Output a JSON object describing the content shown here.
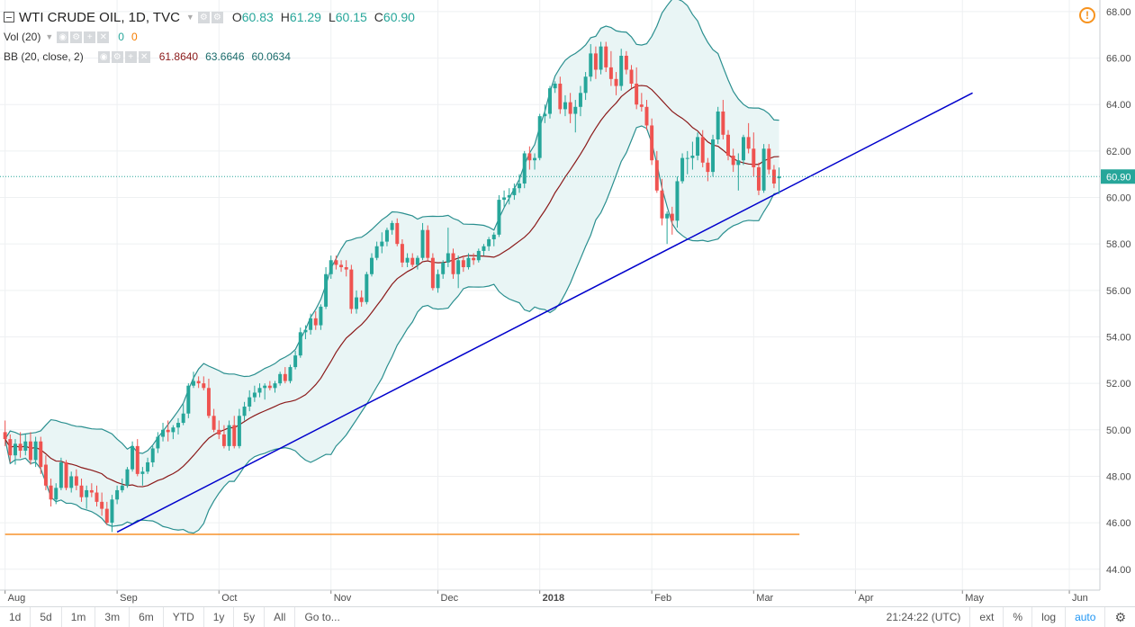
{
  "legend": {
    "title": "WTI CRUDE OIL, 1D, TVC",
    "open_label": "O",
    "open": "60.83",
    "high_label": "H",
    "high": "61.29",
    "low_label": "L",
    "low": "60.15",
    "close_label": "C",
    "close": "60.90",
    "vol_label": "Vol (20)",
    "vol_v1": "0",
    "vol_v2": "0",
    "bb_label": "BB (20, close, 2)",
    "bb_mid": "61.8640",
    "bb_upper": "63.6646",
    "bb_lower": "60.0634"
  },
  "alert_symbol": "!",
  "timeframes": [
    "1d",
    "5d",
    "1m",
    "3m",
    "6m",
    "YTD",
    "1y",
    "5y",
    "All",
    "Go to..."
  ],
  "bottom_right": {
    "time": "21:24:22 (UTC)",
    "ext": "ext",
    "pct": "%",
    "log": "log",
    "auto": "auto",
    "gear": "⚙"
  },
  "colors": {
    "up": "#26a69a",
    "down": "#ef5350",
    "band_fill": "#e9f5f5",
    "band_line": "#2a8f8f",
    "mid_line": "#8b1a1a",
    "trend_line": "#0000cc",
    "support_line": "#f57c00",
    "price_line": "#26a69a",
    "price_label_bg": "#26a69a"
  },
  "chart_data": {
    "type": "candlestick",
    "symbol": "WTI CRUDE OIL",
    "interval": "1D",
    "source": "TVC",
    "y_ticks": [
      44,
      46,
      48,
      50,
      52,
      54,
      56,
      58,
      60,
      62,
      64,
      66,
      68
    ],
    "y_tick_labels": [
      "44.00",
      "46.00",
      "48.00",
      "50.00",
      "52.00",
      "54.00",
      "56.00",
      "58.00",
      "60.00",
      "62.00",
      "64.00",
      "66.00",
      "68.00"
    ],
    "ylim": [
      43.1,
      68.5
    ],
    "x_tick_labels": [
      "Aug",
      "Sep",
      "Oct",
      "Nov",
      "Dec",
      "2018",
      "Feb",
      "Mar",
      "Apr",
      "May",
      "Jun"
    ],
    "x_tick_index": [
      0,
      22,
      42,
      64,
      85,
      105,
      127,
      147,
      167,
      188,
      209
    ],
    "x_range": [
      -1,
      215
    ],
    "last_price": 60.9,
    "last_price_label": "60.90",
    "ohlc": [
      [
        49.9,
        50.4,
        49.3,
        49.6
      ],
      [
        49.6,
        49.8,
        48.6,
        48.9
      ],
      [
        48.9,
        49.6,
        48.5,
        49.4
      ],
      [
        49.4,
        49.9,
        48.8,
        49.1
      ],
      [
        49.1,
        49.8,
        48.9,
        49.5
      ],
      [
        49.5,
        49.9,
        48.5,
        48.7
      ],
      [
        48.7,
        49.7,
        48.4,
        49.5
      ],
      [
        49.5,
        49.7,
        48.1,
        48.4
      ],
      [
        48.5,
        48.9,
        47.4,
        47.6
      ],
      [
        47.6,
        47.9,
        46.7,
        47.0
      ],
      [
        47.0,
        47.7,
        46.8,
        47.5
      ],
      [
        47.5,
        48.8,
        47.4,
        48.6
      ],
      [
        48.6,
        48.7,
        47.4,
        47.5
      ],
      [
        47.5,
        48.2,
        47.3,
        48.0
      ],
      [
        48.0,
        48.3,
        47.4,
        47.6
      ],
      [
        47.6,
        47.9,
        46.9,
        47.1
      ],
      [
        47.1,
        47.6,
        46.6,
        47.4
      ],
      [
        47.4,
        47.7,
        47.1,
        47.3
      ],
      [
        47.3,
        47.6,
        46.7,
        46.9
      ],
      [
        46.9,
        47.3,
        46.3,
        46.6
      ],
      [
        46.6,
        46.9,
        45.9,
        46.0
      ],
      [
        46.0,
        47.2,
        45.6,
        47.0
      ],
      [
        47.0,
        47.6,
        46.8,
        47.4
      ],
      [
        47.4,
        47.9,
        47.3,
        47.6
      ],
      [
        47.6,
        48.4,
        47.5,
        48.3
      ],
      [
        48.3,
        49.5,
        48.2,
        49.3
      ],
      [
        49.3,
        49.6,
        48.0,
        48.1
      ],
      [
        48.1,
        48.4,
        47.6,
        48.2
      ],
      [
        48.2,
        48.8,
        48.1,
        48.6
      ],
      [
        48.6,
        49.3,
        48.4,
        49.2
      ],
      [
        49.2,
        49.9,
        49.0,
        49.7
      ],
      [
        49.7,
        50.3,
        49.5,
        50.0
      ],
      [
        50.0,
        50.4,
        49.5,
        49.9
      ],
      [
        49.9,
        50.2,
        49.6,
        50.1
      ],
      [
        50.1,
        50.5,
        49.8,
        50.3
      ],
      [
        50.3,
        51.1,
        50.2,
        50.7
      ],
      [
        50.7,
        52.0,
        50.5,
        51.9
      ],
      [
        51.9,
        52.5,
        51.8,
        52.1
      ],
      [
        52.1,
        52.3,
        51.8,
        52.0
      ],
      [
        52.0,
        52.3,
        51.7,
        51.8
      ],
      [
        51.8,
        52.2,
        50.5,
        50.6
      ],
      [
        50.6,
        50.9,
        49.9,
        50.0
      ],
      [
        50.0,
        50.4,
        49.6,
        49.8
      ],
      [
        49.8,
        50.2,
        49.2,
        49.3
      ],
      [
        49.3,
        50.4,
        49.1,
        50.2
      ],
      [
        50.2,
        50.6,
        49.2,
        49.3
      ],
      [
        49.3,
        50.9,
        49.2,
        50.6
      ],
      [
        50.6,
        51.2,
        50.4,
        51.0
      ],
      [
        51.0,
        51.7,
        50.8,
        51.4
      ],
      [
        51.4,
        51.9,
        51.2,
        51.6
      ],
      [
        51.6,
        52.0,
        51.4,
        51.8
      ],
      [
        51.8,
        52.0,
        51.3,
        51.9
      ],
      [
        51.9,
        52.1,
        51.7,
        51.8
      ],
      [
        51.8,
        52.1,
        51.6,
        52.0
      ],
      [
        52.0,
        52.5,
        51.9,
        52.4
      ],
      [
        52.4,
        52.7,
        52.0,
        52.1
      ],
      [
        52.1,
        52.8,
        52.0,
        52.7
      ],
      [
        52.7,
        53.4,
        52.6,
        53.2
      ],
      [
        53.2,
        54.4,
        53.1,
        54.2
      ],
      [
        54.2,
        54.5,
        53.9,
        54.3
      ],
      [
        54.3,
        55.0,
        54.1,
        54.8
      ],
      [
        54.8,
        55.1,
        54.3,
        54.5
      ],
      [
        54.5,
        55.4,
        54.3,
        55.3
      ],
      [
        55.3,
        57.0,
        55.2,
        56.7
      ],
      [
        56.7,
        57.5,
        56.5,
        57.3
      ],
      [
        57.3,
        57.5,
        56.9,
        57.1
      ],
      [
        57.1,
        57.3,
        56.8,
        57.0
      ],
      [
        57.0,
        57.3,
        56.6,
        56.9
      ],
      [
        56.9,
        57.1,
        55.0,
        55.2
      ],
      [
        55.2,
        56.0,
        55.0,
        55.7
      ],
      [
        55.7,
        56.0,
        55.3,
        55.5
      ],
      [
        55.5,
        56.8,
        55.4,
        56.7
      ],
      [
        56.7,
        57.6,
        56.6,
        57.4
      ],
      [
        57.4,
        58.1,
        57.3,
        57.9
      ],
      [
        57.9,
        58.5,
        57.6,
        58.1
      ],
      [
        58.1,
        58.7,
        57.9,
        58.6
      ],
      [
        58.6,
        59.0,
        58.4,
        58.9
      ],
      [
        58.9,
        59.1,
        57.9,
        58.0
      ],
      [
        58.0,
        58.2,
        57.0,
        57.2
      ],
      [
        57.2,
        57.6,
        57.0,
        57.4
      ],
      [
        57.4,
        57.6,
        57.0,
        57.1
      ],
      [
        57.1,
        57.5,
        56.9,
        57.4
      ],
      [
        57.4,
        58.9,
        57.3,
        58.6
      ],
      [
        58.6,
        58.8,
        57.3,
        57.4
      ],
      [
        57.4,
        57.6,
        56.0,
        56.1
      ],
      [
        56.1,
        56.9,
        55.9,
        56.7
      ],
      [
        56.7,
        57.3,
        56.5,
        57.2
      ],
      [
        57.2,
        58.7,
        57.0,
        57.6
      ],
      [
        57.6,
        57.8,
        56.5,
        56.7
      ],
      [
        56.7,
        57.5,
        56.1,
        57.3
      ],
      [
        57.3,
        57.5,
        56.8,
        57.0
      ],
      [
        57.0,
        57.6,
        56.9,
        57.4
      ],
      [
        57.4,
        57.6,
        57.1,
        57.3
      ],
      [
        57.3,
        57.8,
        57.2,
        57.7
      ],
      [
        57.7,
        58.0,
        57.5,
        57.9
      ],
      [
        57.9,
        58.3,
        57.7,
        58.2
      ],
      [
        58.2,
        58.5,
        57.9,
        58.4
      ],
      [
        58.4,
        60.1,
        58.3,
        59.9
      ],
      [
        59.9,
        60.3,
        59.6,
        60.0
      ],
      [
        60.0,
        60.4,
        59.7,
        60.1
      ],
      [
        60.1,
        60.6,
        59.9,
        60.4
      ],
      [
        60.4,
        61.0,
        60.2,
        60.6
      ],
      [
        60.6,
        62.0,
        60.4,
        61.9
      ],
      [
        61.9,
        62.2,
        61.2,
        61.6
      ],
      [
        61.6,
        61.9,
        61.2,
        61.7
      ],
      [
        61.7,
        63.6,
        61.6,
        63.5
      ],
      [
        63.5,
        64.0,
        63.2,
        63.6
      ],
      [
        63.6,
        64.8,
        63.4,
        64.7
      ],
      [
        64.7,
        65.0,
        64.5,
        64.9
      ],
      [
        64.9,
        65.2,
        63.6,
        63.8
      ],
      [
        63.8,
        64.4,
        63.5,
        64.1
      ],
      [
        64.1,
        64.5,
        63.2,
        63.6
      ],
      [
        63.6,
        64.2,
        62.8,
        63.9
      ],
      [
        63.9,
        64.8,
        63.5,
        64.5
      ],
      [
        64.5,
        65.4,
        64.2,
        65.2
      ],
      [
        65.2,
        66.6,
        65.0,
        66.2
      ],
      [
        66.2,
        66.5,
        65.1,
        65.5
      ],
      [
        65.5,
        66.7,
        65.3,
        66.5
      ],
      [
        66.5,
        66.7,
        65.4,
        65.6
      ],
      [
        65.6,
        66.3,
        64.8,
        65.1
      ],
      [
        65.1,
        65.4,
        64.4,
        64.8
      ],
      [
        64.8,
        66.4,
        64.6,
        66.1
      ],
      [
        66.1,
        66.3,
        65.3,
        65.5
      ],
      [
        65.5,
        65.7,
        64.7,
        64.9
      ],
      [
        64.9,
        65.6,
        63.8,
        64.0
      ],
      [
        64.0,
        64.5,
        63.7,
        63.9
      ],
      [
        63.9,
        64.2,
        62.9,
        63.1
      ],
      [
        63.1,
        63.4,
        61.4,
        61.6
      ],
      [
        61.6,
        62.0,
        60.2,
        60.3
      ],
      [
        60.3,
        60.8,
        58.8,
        59.1
      ],
      [
        59.1,
        59.4,
        58.0,
        59.3
      ],
      [
        59.3,
        59.6,
        58.4,
        59.0
      ],
      [
        59.0,
        60.9,
        58.7,
        60.7
      ],
      [
        60.7,
        61.9,
        60.6,
        61.7
      ],
      [
        61.7,
        62.0,
        61.0,
        61.7
      ],
      [
        61.7,
        62.4,
        61.2,
        61.8
      ],
      [
        61.8,
        62.8,
        61.6,
        62.6
      ],
      [
        62.6,
        62.9,
        61.3,
        61.5
      ],
      [
        61.5,
        61.7,
        60.7,
        61.1
      ],
      [
        61.1,
        62.7,
        60.9,
        62.5
      ],
      [
        62.5,
        63.9,
        62.3,
        63.7
      ],
      [
        63.7,
        64.2,
        62.5,
        62.7
      ],
      [
        62.7,
        62.9,
        61.6,
        61.8
      ],
      [
        61.8,
        62.1,
        61.1,
        61.4
      ],
      [
        61.4,
        61.9,
        60.3,
        61.6
      ],
      [
        61.6,
        62.7,
        61.4,
        62.6
      ],
      [
        62.6,
        63.2,
        61.9,
        62.1
      ],
      [
        62.1,
        62.8,
        60.9,
        61.3
      ],
      [
        61.3,
        61.5,
        60.1,
        60.3
      ],
      [
        60.3,
        62.3,
        60.2,
        62.1
      ],
      [
        62.1,
        62.3,
        61.0,
        61.2
      ],
      [
        61.2,
        61.4,
        60.4,
        60.6
      ],
      [
        60.83,
        61.29,
        60.15,
        60.9
      ]
    ],
    "bollinger": {
      "label": "BB (20, close, 2)",
      "length": 20,
      "stddev": 2,
      "last_mid": 61.864,
      "last_upper": 63.6646,
      "last_lower": 60.0634
    },
    "trend_line": {
      "from": {
        "index": 22,
        "price": 45.6
      },
      "to": {
        "index": 190,
        "price": 64.5
      }
    },
    "support_line": {
      "from": {
        "index": 0,
        "price": 45.5
      },
      "to": {
        "index": 156,
        "price": 45.5
      }
    }
  }
}
